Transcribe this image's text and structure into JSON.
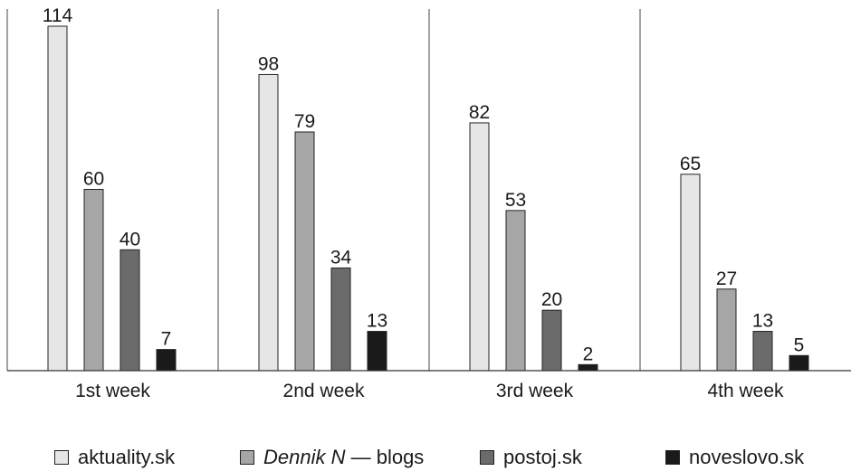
{
  "chart_data": {
    "type": "bar",
    "categories": [
      "1st week",
      "2nd week",
      "3rd week",
      "4th week"
    ],
    "series": [
      {
        "name": "aktuality.sk",
        "values": [
          114,
          98,
          82,
          65
        ],
        "color": "#e6e6e6"
      },
      {
        "name": "Dennik N — blogs",
        "name_italic": "Dennik N",
        "name_rest": " — blogs",
        "values": [
          60,
          79,
          53,
          27
        ],
        "color": "#a6a6a6"
      },
      {
        "name": "postoj.sk",
        "values": [
          40,
          34,
          20,
          13
        ],
        "color": "#6b6b6b"
      },
      {
        "name": "noveslovo.sk",
        "values": [
          7,
          13,
          2,
          5
        ],
        "color": "#1a1a1a"
      }
    ],
    "title": "",
    "xlabel": "",
    "ylabel": "",
    "ylim": [
      0,
      120
    ],
    "grid": false,
    "legend_position": "bottom"
  }
}
